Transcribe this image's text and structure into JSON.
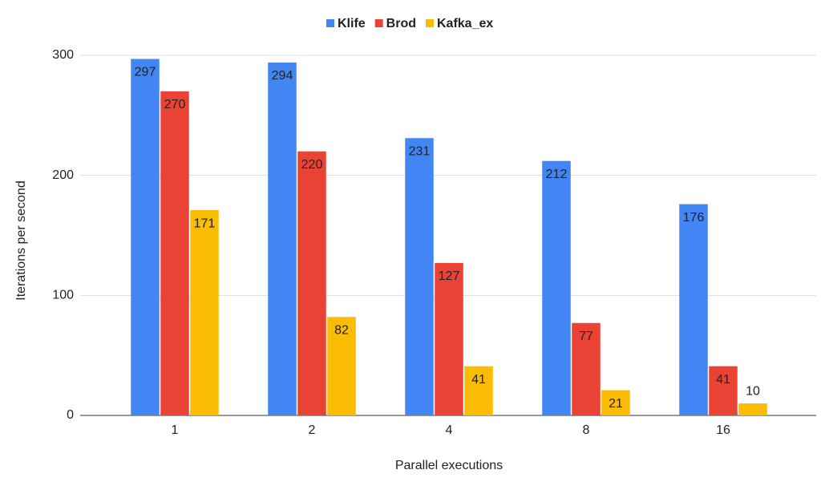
{
  "chart_data": {
    "type": "bar",
    "x_label": "Parallel executions",
    "y_label": "Iterations per second",
    "categories": [
      "1",
      "2",
      "4",
      "8",
      "16"
    ],
    "series": [
      {
        "name": "Klife",
        "color": "#4285f4",
        "values": [
          297,
          294,
          231,
          212,
          176
        ]
      },
      {
        "name": "Brod",
        "color": "#ea4335",
        "values": [
          270,
          220,
          127,
          77,
          41
        ]
      },
      {
        "name": "Kafka_ex",
        "color": "#fbbc04",
        "values": [
          171,
          82,
          41,
          21,
          10
        ]
      }
    ],
    "ylim": [
      0,
      300
    ],
    "yticks": [
      0,
      100,
      200,
      300
    ],
    "grid": true,
    "legend": "top"
  }
}
